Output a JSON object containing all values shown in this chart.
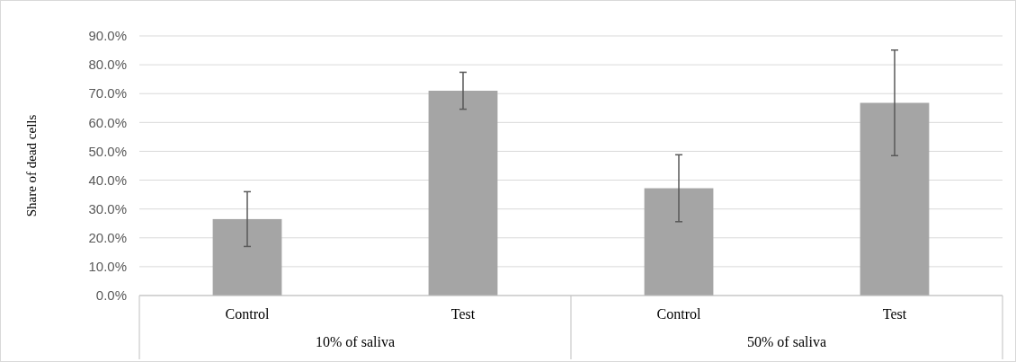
{
  "chart_data": {
    "type": "bar",
    "ylabel": "Share of dead cells",
    "categories": [
      "Control",
      "Test",
      "Control",
      "Test"
    ],
    "values": [
      26.5,
      71.0,
      37.2,
      66.8
    ],
    "errors": [
      9.5,
      6.4,
      11.6,
      18.3
    ],
    "color": "#a5a5a5",
    "ylim": [
      0,
      90
    ],
    "yticks": [
      {
        "value": 0,
        "label": "0.0%"
      },
      {
        "value": 10,
        "label": "10.0%"
      },
      {
        "value": 20,
        "label": "20.0%"
      },
      {
        "value": 30,
        "label": "30.0%"
      },
      {
        "value": 40,
        "label": "40.0%"
      },
      {
        "value": 50,
        "label": "50.0%"
      },
      {
        "value": 60,
        "label": "60.0%"
      },
      {
        "value": 70,
        "label": "70.0%"
      },
      {
        "value": 80,
        "label": "80.0%"
      },
      {
        "value": 90,
        "label": "90.0%"
      }
    ],
    "grid": "y",
    "annotations": [
      "10% of saliva",
      "50% of saliva"
    ]
  }
}
